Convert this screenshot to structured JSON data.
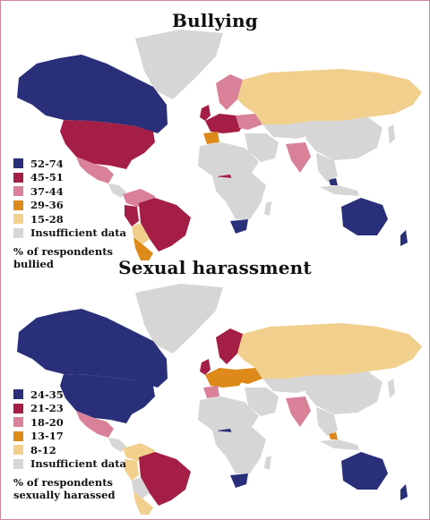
{
  "palette": {
    "c1": "#2a2f7a",
    "c2": "#a41e45",
    "c3": "#d88198",
    "c4": "#de8a1a",
    "c5": "#f1cf8c",
    "nodata": "#d6d6d6"
  },
  "maps": [
    {
      "title": "Bullying",
      "legend": [
        {
          "label": "52-74",
          "color": "#2a2f7a"
        },
        {
          "label": "45-51",
          "color": "#a41e45"
        },
        {
          "label": "37-44",
          "color": "#d88198"
        },
        {
          "label": "29-36",
          "color": "#de8a1a"
        },
        {
          "label": "15-28",
          "color": "#f1cf8c"
        },
        {
          "label": "Insufficient data",
          "color": "#d6d6d6"
        }
      ],
      "note_line1": "% of respondents",
      "note_line2": "bullied"
    },
    {
      "title": "Sexual harassment",
      "legend": [
        {
          "label": "24-35",
          "color": "#2a2f7a"
        },
        {
          "label": "21-23",
          "color": "#a41e45"
        },
        {
          "label": "18-20",
          "color": "#d88198"
        },
        {
          "label": "13-17",
          "color": "#de8a1a"
        },
        {
          "label": "8-12",
          "color": "#f1cf8c"
        },
        {
          "label": "Insufficient data",
          "color": "#d6d6d6"
        }
      ],
      "note_line1": "% of respondents",
      "note_line2": "sexually harassed"
    }
  ]
}
